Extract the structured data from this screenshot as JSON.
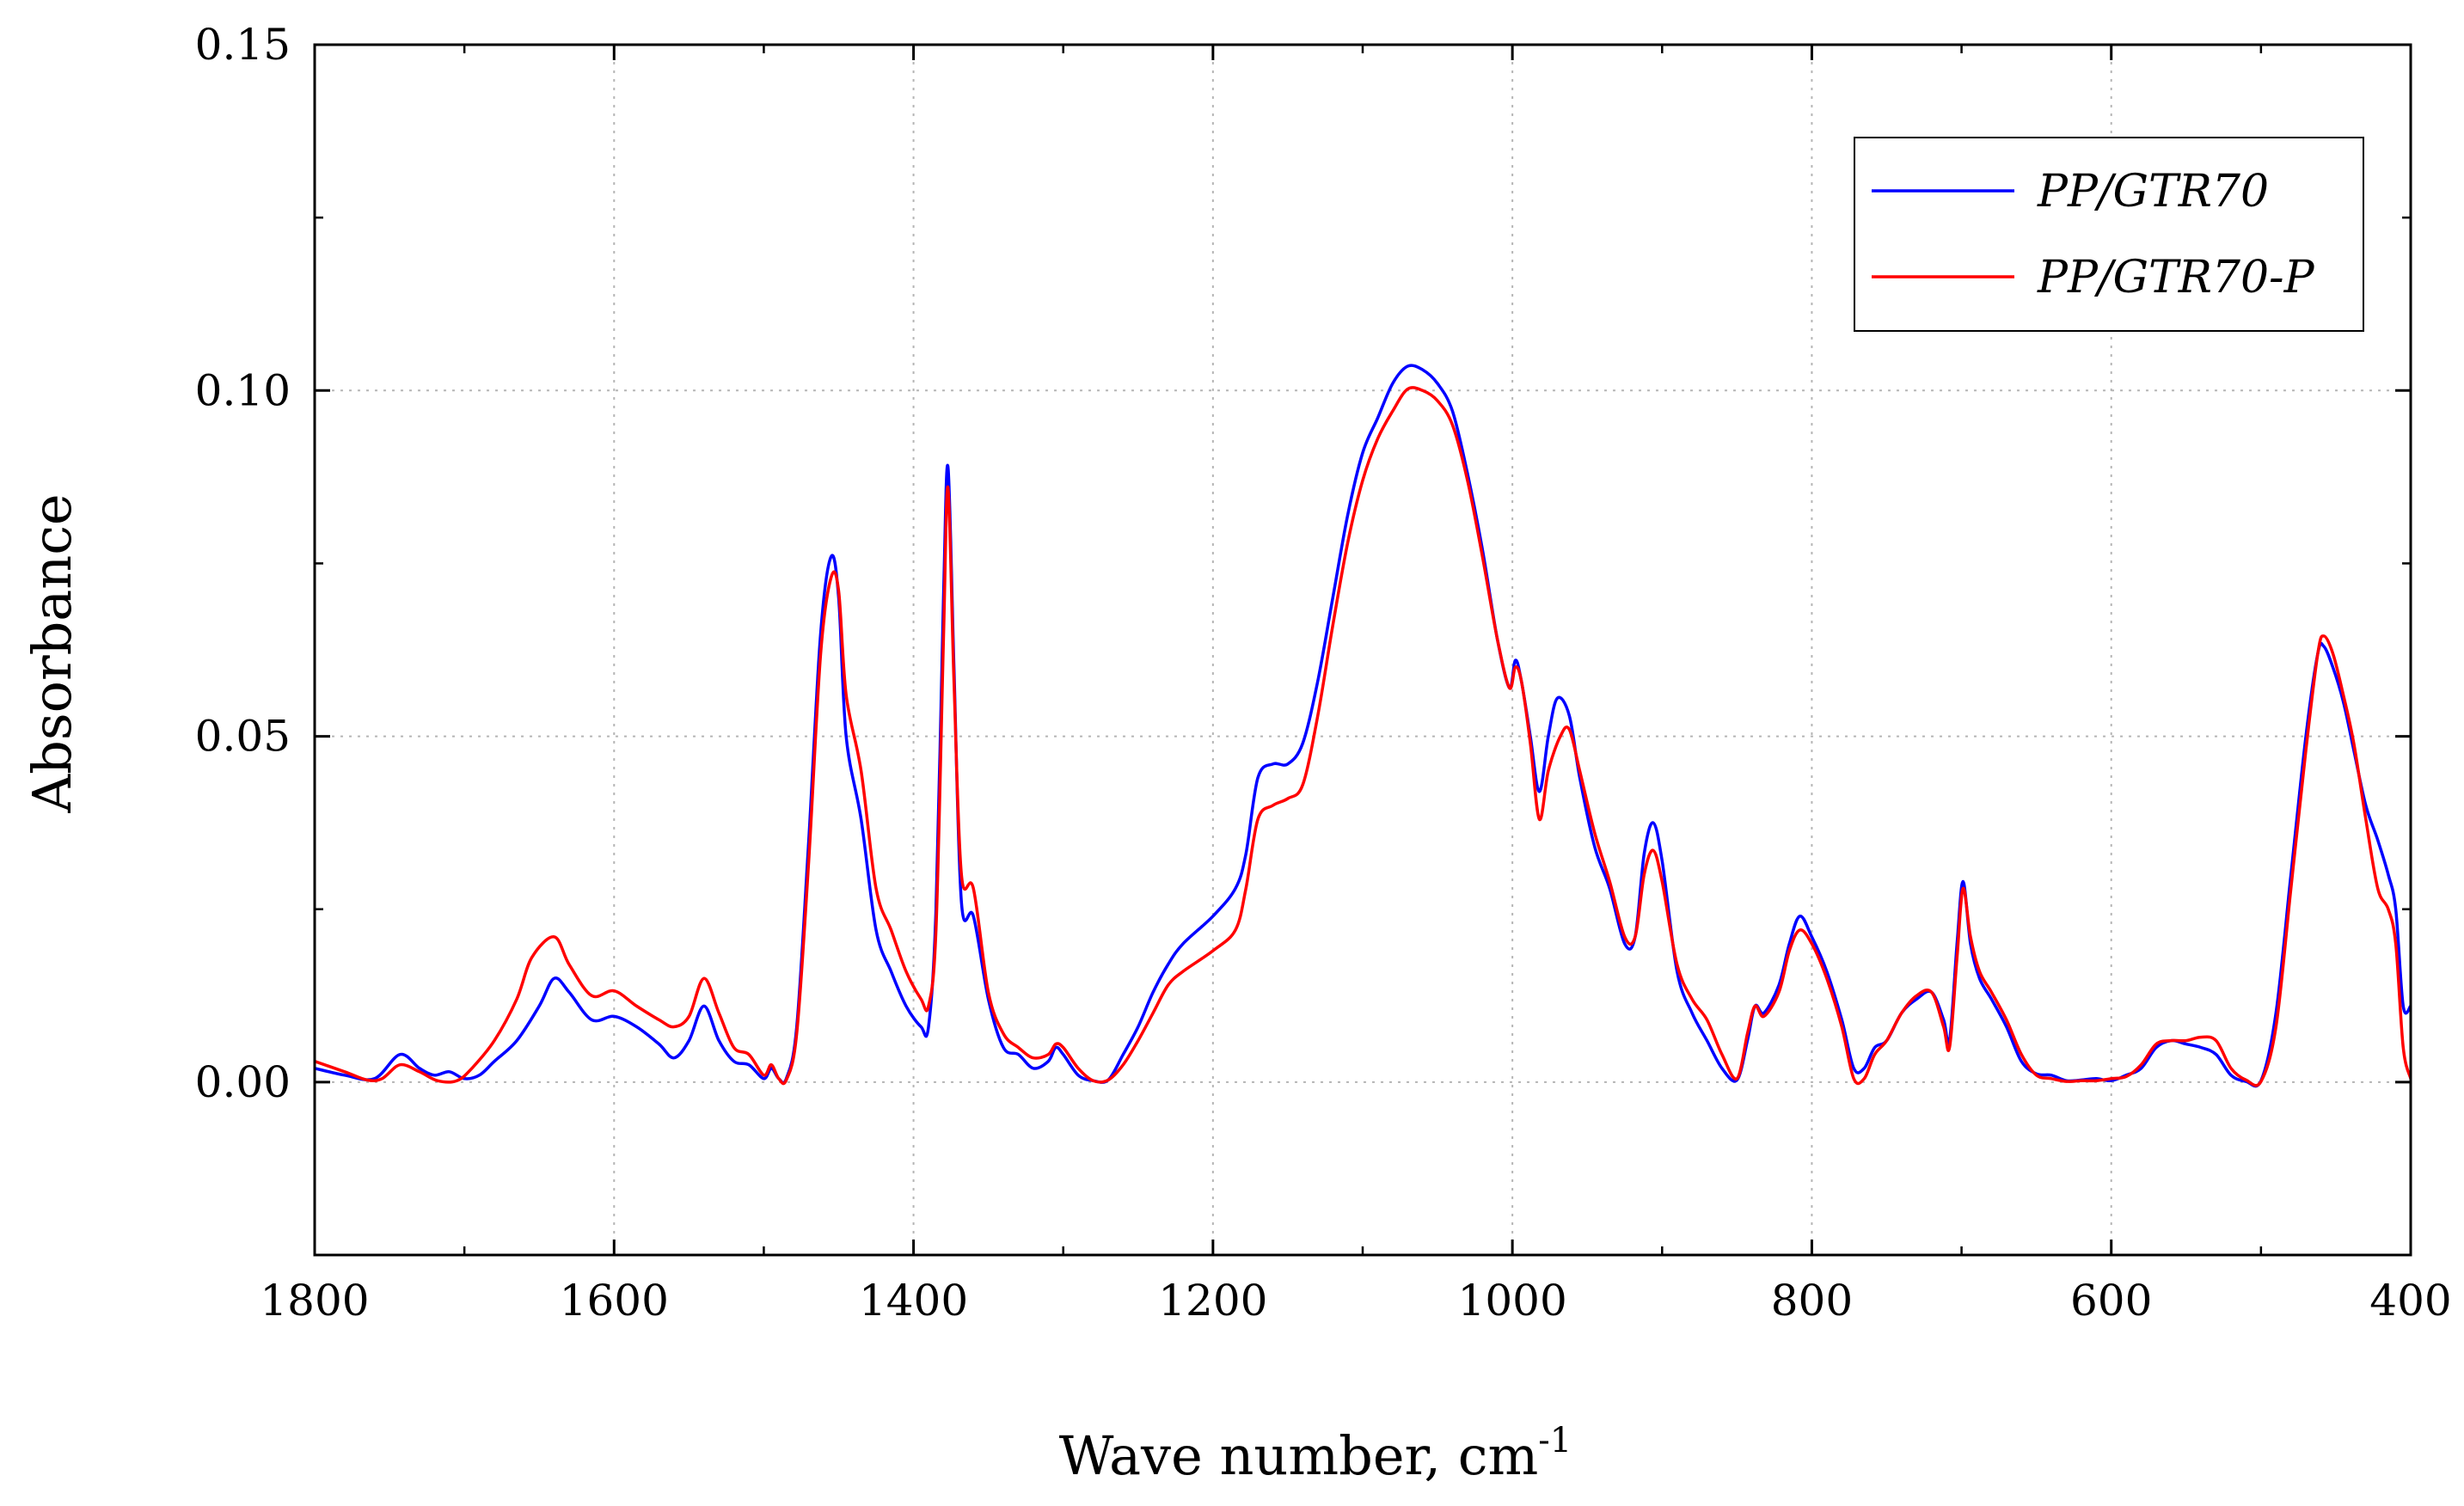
{
  "chart_data": {
    "type": "line",
    "title": "",
    "xlabel": "Wave number, cm",
    "xlabel_superscript": "-1",
    "ylabel": "Absorbance",
    "xlim": [
      1800,
      400
    ],
    "ylim": [
      -0.025,
      0.15
    ],
    "x_ticks": [
      1800,
      1600,
      1400,
      1200,
      1000,
      800,
      600,
      400
    ],
    "x_tick_labels": [
      "1800",
      "1600",
      "1400",
      "1200",
      "1000",
      "800",
      "600",
      "400"
    ],
    "y_ticks": [
      0.0,
      0.05,
      0.1,
      0.15
    ],
    "y_tick_labels": [
      "0.00",
      "0.05",
      "0.10",
      "0.15"
    ],
    "grid": true,
    "legend_position": "top-right",
    "series": [
      {
        "name": "PP/GTR70",
        "color": "#0000ff",
        "points": [
          [
            1800,
            0.002
          ],
          [
            1780,
            0.001
          ],
          [
            1760,
            0.0005
          ],
          [
            1743,
            0.004
          ],
          [
            1730,
            0.002
          ],
          [
            1720,
            0.001
          ],
          [
            1710,
            0.0015
          ],
          [
            1700,
            0.0005
          ],
          [
            1690,
            0.001
          ],
          [
            1680,
            0.003
          ],
          [
            1665,
            0.006
          ],
          [
            1650,
            0.011
          ],
          [
            1640,
            0.015
          ],
          [
            1630,
            0.013
          ],
          [
            1615,
            0.009
          ],
          [
            1600,
            0.0095
          ],
          [
            1585,
            0.008
          ],
          [
            1570,
            0.0055
          ],
          [
            1560,
            0.0035
          ],
          [
            1550,
            0.006
          ],
          [
            1540,
            0.011
          ],
          [
            1530,
            0.006
          ],
          [
            1520,
            0.003
          ],
          [
            1510,
            0.0025
          ],
          [
            1500,
            0.0005
          ],
          [
            1495,
            0.002
          ],
          [
            1490,
            0.0005
          ],
          [
            1485,
            0.0005
          ],
          [
            1478,
            0.008
          ],
          [
            1470,
            0.035
          ],
          [
            1462,
            0.065
          ],
          [
            1455,
            0.076
          ],
          [
            1450,
            0.07
          ],
          [
            1445,
            0.05
          ],
          [
            1435,
            0.038
          ],
          [
            1425,
            0.022
          ],
          [
            1415,
            0.016
          ],
          [
            1405,
            0.011
          ],
          [
            1395,
            0.008
          ],
          [
            1390,
            0.008
          ],
          [
            1385,
            0.025
          ],
          [
            1380,
            0.07
          ],
          [
            1377,
            0.089
          ],
          [
            1373,
            0.06
          ],
          [
            1368,
            0.026
          ],
          [
            1360,
            0.024
          ],
          [
            1350,
            0.012
          ],
          [
            1340,
            0.005
          ],
          [
            1330,
            0.004
          ],
          [
            1320,
            0.002
          ],
          [
            1310,
            0.003
          ],
          [
            1305,
            0.005
          ],
          [
            1300,
            0.004
          ],
          [
            1290,
            0.001
          ],
          [
            1280,
            0.0002
          ],
          [
            1270,
            0.0003
          ],
          [
            1260,
            0.004
          ],
          [
            1250,
            0.008
          ],
          [
            1240,
            0.013
          ],
          [
            1230,
            0.017
          ],
          [
            1220,
            0.02
          ],
          [
            1200,
            0.024
          ],
          [
            1185,
            0.028
          ],
          [
            1178,
            0.033
          ],
          [
            1170,
            0.044
          ],
          [
            1160,
            0.046
          ],
          [
            1150,
            0.046
          ],
          [
            1140,
            0.049
          ],
          [
            1130,
            0.058
          ],
          [
            1120,
            0.07
          ],
          [
            1110,
            0.082
          ],
          [
            1100,
            0.091
          ],
          [
            1090,
            0.096
          ],
          [
            1080,
            0.101
          ],
          [
            1070,
            0.1035
          ],
          [
            1060,
            0.103
          ],
          [
            1050,
            0.101
          ],
          [
            1040,
            0.097
          ],
          [
            1030,
            0.088
          ],
          [
            1020,
            0.077
          ],
          [
            1010,
            0.064
          ],
          [
            1002,
            0.057
          ],
          [
            998,
            0.061
          ],
          [
            994,
            0.058
          ],
          [
            988,
            0.05
          ],
          [
            982,
            0.042
          ],
          [
            976,
            0.05
          ],
          [
            970,
            0.0555
          ],
          [
            962,
            0.053
          ],
          [
            955,
            0.044
          ],
          [
            945,
            0.034
          ],
          [
            935,
            0.028
          ],
          [
            925,
            0.02
          ],
          [
            918,
            0.021
          ],
          [
            912,
            0.033
          ],
          [
            906,
            0.0375
          ],
          [
            900,
            0.032
          ],
          [
            890,
            0.016
          ],
          [
            880,
            0.01
          ],
          [
            870,
            0.006
          ],
          [
            860,
            0.002
          ],
          [
            850,
            0.0003
          ],
          [
            843,
            0.006
          ],
          [
            838,
            0.011
          ],
          [
            832,
            0.01
          ],
          [
            822,
            0.014
          ],
          [
            815,
            0.02
          ],
          [
            808,
            0.024
          ],
          [
            800,
            0.021
          ],
          [
            790,
            0.016
          ],
          [
            780,
            0.009
          ],
          [
            772,
            0.002
          ],
          [
            765,
            0.002
          ],
          [
            758,
            0.005
          ],
          [
            750,
            0.006
          ],
          [
            740,
            0.01
          ],
          [
            730,
            0.012
          ],
          [
            720,
            0.013
          ],
          [
            712,
            0.009
          ],
          [
            708,
            0.006
          ],
          [
            703,
            0.02
          ],
          [
            699,
            0.029
          ],
          [
            694,
            0.02
          ],
          [
            688,
            0.015
          ],
          [
            680,
            0.012
          ],
          [
            670,
            0.008
          ],
          [
            660,
            0.003
          ],
          [
            650,
            0.0012
          ],
          [
            640,
            0.001
          ],
          [
            630,
            0.0002
          ],
          [
            620,
            0.0003
          ],
          [
            610,
            0.0005
          ],
          [
            600,
            0.0002
          ],
          [
            590,
            0.001
          ],
          [
            580,
            0.002
          ],
          [
            570,
            0.005
          ],
          [
            560,
            0.006
          ],
          [
            550,
            0.0055
          ],
          [
            540,
            0.005
          ],
          [
            530,
            0.004
          ],
          [
            520,
            0.001
          ],
          [
            510,
            0.0001
          ],
          [
            500,
            0.0002
          ],
          [
            490,
            0.01
          ],
          [
            480,
            0.03
          ],
          [
            470,
            0.05
          ],
          [
            462,
            0.062
          ],
          [
            458,
            0.063
          ],
          [
            452,
            0.06
          ],
          [
            445,
            0.055
          ],
          [
            438,
            0.048
          ],
          [
            430,
            0.04
          ],
          [
            422,
            0.035
          ],
          [
            415,
            0.03
          ],
          [
            410,
            0.025
          ],
          [
            405,
            0.011
          ],
          [
            400,
            0.011
          ]
        ]
      },
      {
        "name": "PP/GTR70-P",
        "color": "#ff0000",
        "points": [
          [
            1800,
            0.003
          ],
          [
            1780,
            0.0015
          ],
          [
            1765,
            0.0003
          ],
          [
            1755,
            0.0005
          ],
          [
            1743,
            0.0025
          ],
          [
            1730,
            0.0015
          ],
          [
            1718,
            0.0002
          ],
          [
            1705,
            0.0002
          ],
          [
            1695,
            0.002
          ],
          [
            1680,
            0.006
          ],
          [
            1665,
            0.012
          ],
          [
            1655,
            0.018
          ],
          [
            1640,
            0.021
          ],
          [
            1630,
            0.017
          ],
          [
            1615,
            0.0125
          ],
          [
            1600,
            0.0132
          ],
          [
            1585,
            0.011
          ],
          [
            1570,
            0.009
          ],
          [
            1560,
            0.008
          ],
          [
            1550,
            0.0095
          ],
          [
            1540,
            0.015
          ],
          [
            1530,
            0.01
          ],
          [
            1520,
            0.005
          ],
          [
            1510,
            0.004
          ],
          [
            1500,
            0.001
          ],
          [
            1495,
            0.0025
          ],
          [
            1490,
            0.0005
          ],
          [
            1485,
            0.0003
          ],
          [
            1478,
            0.007
          ],
          [
            1470,
            0.032
          ],
          [
            1462,
            0.062
          ],
          [
            1455,
            0.073
          ],
          [
            1450,
            0.071
          ],
          [
            1445,
            0.056
          ],
          [
            1435,
            0.045
          ],
          [
            1425,
            0.028
          ],
          [
            1415,
            0.022
          ],
          [
            1405,
            0.016
          ],
          [
            1395,
            0.012
          ],
          [
            1390,
            0.011
          ],
          [
            1385,
            0.022
          ],
          [
            1380,
            0.064
          ],
          [
            1377,
            0.086
          ],
          [
            1373,
            0.058
          ],
          [
            1368,
            0.03
          ],
          [
            1360,
            0.028
          ],
          [
            1350,
            0.013
          ],
          [
            1340,
            0.007
          ],
          [
            1330,
            0.005
          ],
          [
            1320,
            0.0035
          ],
          [
            1310,
            0.004
          ],
          [
            1305,
            0.0055
          ],
          [
            1300,
            0.005
          ],
          [
            1290,
            0.002
          ],
          [
            1280,
            0.0002
          ],
          [
            1270,
            0.0003
          ],
          [
            1260,
            0.0025
          ],
          [
            1250,
            0.006
          ],
          [
            1240,
            0.01
          ],
          [
            1230,
            0.014
          ],
          [
            1220,
            0.016
          ],
          [
            1200,
            0.019
          ],
          [
            1185,
            0.022
          ],
          [
            1178,
            0.028
          ],
          [
            1170,
            0.038
          ],
          [
            1160,
            0.04
          ],
          [
            1150,
            0.041
          ],
          [
            1140,
            0.043
          ],
          [
            1130,
            0.053
          ],
          [
            1120,
            0.066
          ],
          [
            1110,
            0.078
          ],
          [
            1100,
            0.087
          ],
          [
            1090,
            0.093
          ],
          [
            1080,
            0.097
          ],
          [
            1070,
            0.1002
          ],
          [
            1060,
            0.1
          ],
          [
            1050,
            0.0985
          ],
          [
            1040,
            0.095
          ],
          [
            1030,
            0.087
          ],
          [
            1020,
            0.076
          ],
          [
            1010,
            0.064
          ],
          [
            1002,
            0.057
          ],
          [
            998,
            0.06
          ],
          [
            994,
            0.058
          ],
          [
            988,
            0.049
          ],
          [
            982,
            0.038
          ],
          [
            976,
            0.045
          ],
          [
            968,
            0.05
          ],
          [
            962,
            0.051
          ],
          [
            955,
            0.045
          ],
          [
            945,
            0.036
          ],
          [
            935,
            0.029
          ],
          [
            925,
            0.021
          ],
          [
            918,
            0.021
          ],
          [
            912,
            0.03
          ],
          [
            906,
            0.0335
          ],
          [
            900,
            0.029
          ],
          [
            890,
            0.017
          ],
          [
            880,
            0.012
          ],
          [
            870,
            0.009
          ],
          [
            860,
            0.004
          ],
          [
            850,
            0.0005
          ],
          [
            843,
            0.007
          ],
          [
            838,
            0.011
          ],
          [
            832,
            0.0095
          ],
          [
            822,
            0.013
          ],
          [
            815,
            0.019
          ],
          [
            808,
            0.022
          ],
          [
            800,
            0.02
          ],
          [
            790,
            0.015
          ],
          [
            780,
            0.008
          ],
          [
            772,
            0.0005
          ],
          [
            765,
            0.0005
          ],
          [
            758,
            0.004
          ],
          [
            750,
            0.006
          ],
          [
            740,
            0.01
          ],
          [
            730,
            0.0125
          ],
          [
            720,
            0.013
          ],
          [
            712,
            0.008
          ],
          [
            708,
            0.005
          ],
          [
            703,
            0.018
          ],
          [
            699,
            0.028
          ],
          [
            694,
            0.021
          ],
          [
            688,
            0.016
          ],
          [
            680,
            0.013
          ],
          [
            670,
            0.009
          ],
          [
            660,
            0.004
          ],
          [
            650,
            0.001
          ],
          [
            640,
            0.0005
          ],
          [
            630,
            0.0001
          ],
          [
            620,
            0.0002
          ],
          [
            610,
            0.0002
          ],
          [
            600,
            0.0005
          ],
          [
            590,
            0.0008
          ],
          [
            580,
            0.0025
          ],
          [
            570,
            0.0055
          ],
          [
            560,
            0.006
          ],
          [
            550,
            0.006
          ],
          [
            540,
            0.0065
          ],
          [
            530,
            0.006
          ],
          [
            520,
            0.002
          ],
          [
            510,
            0.0003
          ],
          [
            500,
            0.0001
          ],
          [
            490,
            0.008
          ],
          [
            480,
            0.028
          ],
          [
            470,
            0.048
          ],
          [
            462,
            0.062
          ],
          [
            458,
            0.0645
          ],
          [
            452,
            0.062
          ],
          [
            445,
            0.056
          ],
          [
            438,
            0.049
          ],
          [
            430,
            0.038
          ],
          [
            422,
            0.028
          ],
          [
            415,
            0.025
          ],
          [
            410,
            0.02
          ],
          [
            405,
            0.005
          ],
          [
            400,
            0.0005
          ]
        ]
      }
    ]
  }
}
